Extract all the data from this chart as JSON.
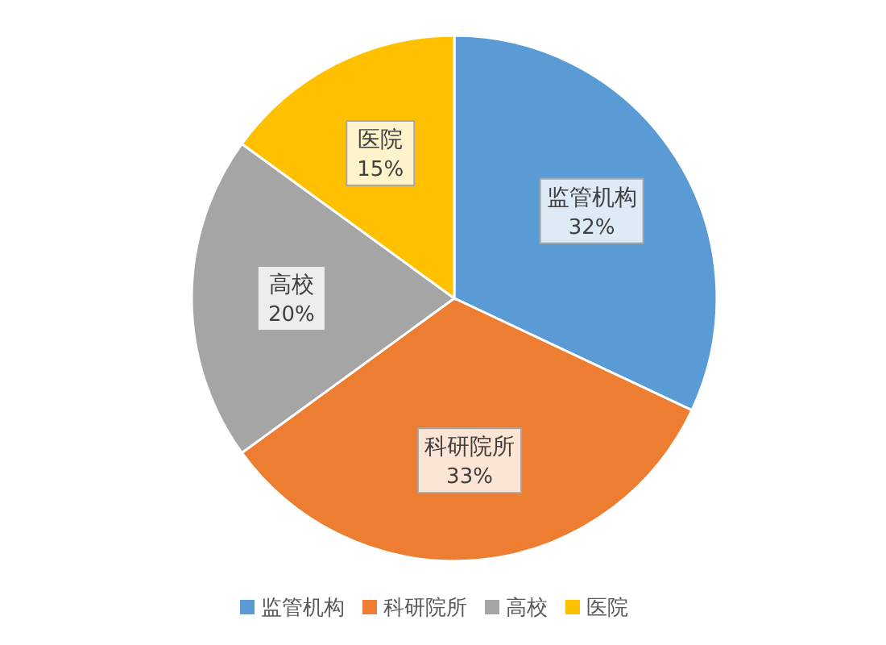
{
  "chart_data": {
    "type": "pie",
    "categories": [
      "监管机构",
      "科研院所",
      "高校",
      "医院"
    ],
    "values": [
      32,
      33,
      20,
      15
    ],
    "colors": [
      "#5b9bd5",
      "#ed7d31",
      "#a5a5a5",
      "#ffc000"
    ],
    "value_labels": [
      "32%",
      "33%",
      "20%",
      "15%"
    ],
    "legend": "bottom"
  }
}
